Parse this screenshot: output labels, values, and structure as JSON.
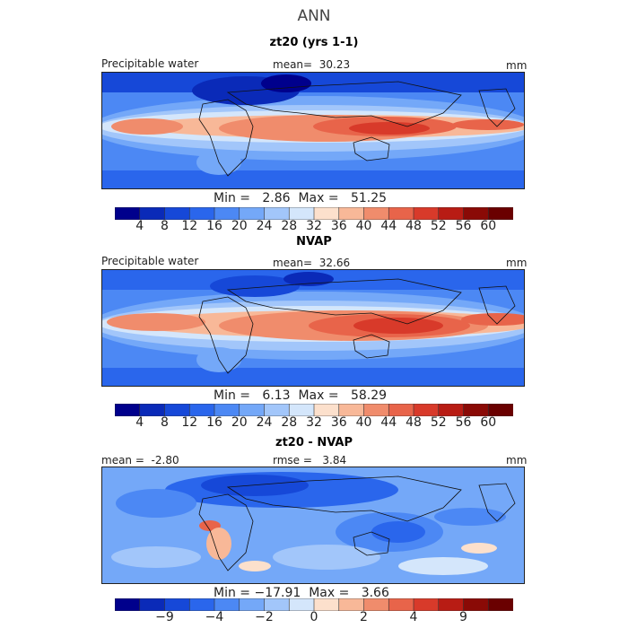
{
  "title": "ANN",
  "chart_data": [
    {
      "type": "heatmap",
      "title": "zt20 (yrs 1-1)",
      "left_label": "Precipitable water",
      "mean_label": "mean=",
      "mean_value": "30.23",
      "units": "mm",
      "min_label": "Min =",
      "min_value": "2.86",
      "max_label": "Max =",
      "max_value": "51.25",
      "colorbar": {
        "levels": [
          "4",
          "8",
          "12",
          "16",
          "20",
          "24",
          "28",
          "32",
          "36",
          "40",
          "44",
          "48",
          "52",
          "56",
          "60"
        ],
        "colors": [
          "#00008c",
          "#0a2ab8",
          "#1648d8",
          "#2a66ec",
          "#4c88f4",
          "#74a8f8",
          "#a2c6fa",
          "#d4e6fb",
          "#fce0cc",
          "#f8b898",
          "#f08c6c",
          "#e8644a",
          "#d83a2a",
          "#b81c14",
          "#8a0a06",
          "#6a0000"
        ]
      }
    },
    {
      "type": "heatmap",
      "title": "NVAP",
      "left_label": "Precipitable water",
      "mean_label": "mean=",
      "mean_value": "32.66",
      "units": "mm",
      "min_label": "Min =",
      "min_value": "6.13",
      "max_label": "Max =",
      "max_value": "58.29",
      "colorbar": {
        "levels": [
          "4",
          "8",
          "12",
          "16",
          "20",
          "24",
          "28",
          "32",
          "36",
          "40",
          "44",
          "48",
          "52",
          "56",
          "60"
        ],
        "colors": [
          "#00008c",
          "#0a2ab8",
          "#1648d8",
          "#2a66ec",
          "#4c88f4",
          "#74a8f8",
          "#a2c6fa",
          "#d4e6fb",
          "#fce0cc",
          "#f8b898",
          "#f08c6c",
          "#e8644a",
          "#d83a2a",
          "#b81c14",
          "#8a0a06",
          "#6a0000"
        ]
      }
    },
    {
      "type": "heatmap",
      "title": "zt20 - NVAP",
      "mean_label": "mean =",
      "mean_value": "-2.80",
      "rmse_label": "rmse =",
      "rmse_value": "3.84",
      "units": "mm",
      "min_label": "Min =",
      "min_value": "−17.91",
      "max_label": "Max =",
      "max_value": "3.66",
      "colorbar": {
        "levels": [
          "−9",
          "−4",
          "−2",
          "0",
          "2",
          "4",
          "9"
        ],
        "tick_boundaries": [
          2,
          4,
          6,
          8,
          10,
          12,
          14
        ],
        "colors": [
          "#00008c",
          "#0a2ab8",
          "#1648d8",
          "#2a66ec",
          "#4c88f4",
          "#74a8f8",
          "#a2c6fa",
          "#d4e6fb",
          "#fce0cc",
          "#f8b898",
          "#f08c6c",
          "#e8644a",
          "#d83a2a",
          "#b81c14",
          "#8a0a06",
          "#6a0000"
        ]
      }
    }
  ]
}
